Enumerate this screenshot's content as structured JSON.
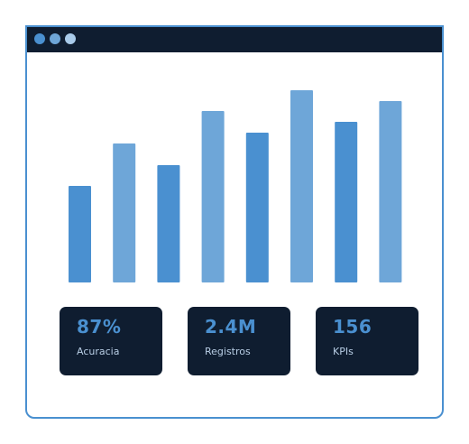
{
  "window": {
    "controls": [
      "close",
      "minimize",
      "maximize"
    ]
  },
  "chart_data": {
    "type": "bar",
    "values": [
      107,
      154,
      130,
      190,
      166,
      213,
      178,
      201
    ],
    "ylim": [
      0,
      225
    ],
    "colors": [
      "#4a90d0",
      "#6ea6d8"
    ],
    "grid": false
  },
  "kpis": [
    {
      "value": "87%",
      "label": "Acuracia"
    },
    {
      "value": "2.4M",
      "label": "Registros"
    },
    {
      "value": "156",
      "label": "KPIs"
    }
  ]
}
